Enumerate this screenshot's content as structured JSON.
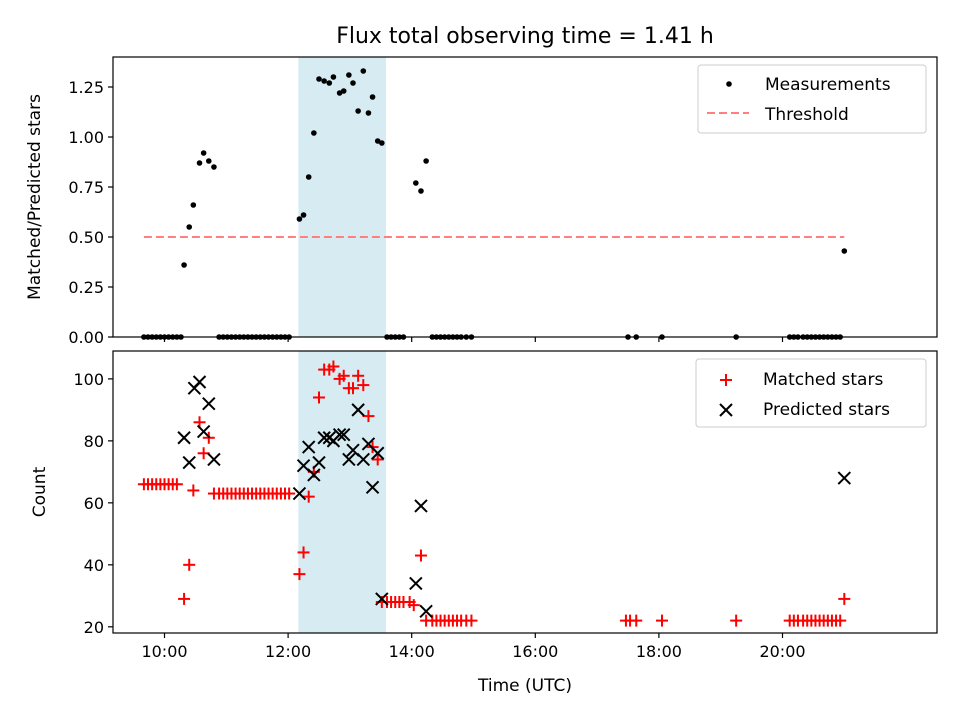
{
  "figure_title": "Flux total observing time = 1.41 h",
  "highlight": {
    "start": "12:10",
    "end": "13:35",
    "color": "#add8e6"
  },
  "chart_data": [
    {
      "type": "scatter",
      "title": "Flux total observing time = 1.41 h",
      "xlabel": "",
      "ylabel": "Matched/Predicted stars",
      "xlim": [
        "09:10",
        "22:30"
      ],
      "ylim": [
        0,
        1.4
      ],
      "yticks": [
        0.0,
        0.25,
        0.5,
        0.75,
        1.0,
        1.25
      ],
      "ytick_labels": [
        "0.00",
        "0.25",
        "0.50",
        "0.75",
        "1.00",
        "1.25"
      ],
      "legend_position": "top-right",
      "series": [
        {
          "name": "Measurements",
          "marker": "dot",
          "color": "#000000",
          "points": [
            [
              "09:40",
              0
            ],
            [
              "09:44",
              0
            ],
            [
              "09:48",
              0
            ],
            [
              "09:52",
              0
            ],
            [
              "09:56",
              0
            ],
            [
              "10:00",
              0
            ],
            [
              "10:04",
              0
            ],
            [
              "10:08",
              0
            ],
            [
              "10:12",
              0
            ],
            [
              "10:16",
              0
            ],
            [
              "10:19",
              0.36
            ],
            [
              "10:24",
              0.55
            ],
            [
              "10:28",
              0.66
            ],
            [
              "10:34",
              0.87
            ],
            [
              "10:38",
              0.92
            ],
            [
              "10:43",
              0.88
            ],
            [
              "10:48",
              0.85
            ],
            [
              "10:53",
              0
            ],
            [
              "10:57",
              0
            ],
            [
              "11:01",
              0
            ],
            [
              "11:05",
              0
            ],
            [
              "11:09",
              0
            ],
            [
              "11:13",
              0
            ],
            [
              "11:17",
              0
            ],
            [
              "11:21",
              0
            ],
            [
              "11:25",
              0
            ],
            [
              "11:29",
              0
            ],
            [
              "11:33",
              0
            ],
            [
              "11:37",
              0
            ],
            [
              "11:41",
              0
            ],
            [
              "11:45",
              0
            ],
            [
              "11:49",
              0
            ],
            [
              "11:53",
              0
            ],
            [
              "11:57",
              0
            ],
            [
              "12:01",
              0
            ],
            [
              "12:11",
              0.59
            ],
            [
              "12:15",
              0.61
            ],
            [
              "12:20",
              0.8
            ],
            [
              "12:25",
              1.02
            ],
            [
              "12:30",
              1.29
            ],
            [
              "12:35",
              1.28
            ],
            [
              "12:40",
              1.27
            ],
            [
              "12:44",
              1.3
            ],
            [
              "12:50",
              1.22
            ],
            [
              "12:54",
              1.23
            ],
            [
              "12:59",
              1.31
            ],
            [
              "13:03",
              1.27
            ],
            [
              "13:08",
              1.13
            ],
            [
              "13:13",
              1.33
            ],
            [
              "13:18",
              1.12
            ],
            [
              "13:22",
              1.2
            ],
            [
              "13:27",
              0.98
            ],
            [
              "13:31",
              0.97
            ],
            [
              "13:36",
              0
            ],
            [
              "13:40",
              0
            ],
            [
              "13:44",
              0
            ],
            [
              "13:48",
              0
            ],
            [
              "13:52",
              0
            ],
            [
              "14:04",
              0.77
            ],
            [
              "14:09",
              0.73
            ],
            [
              "14:14",
              0.88
            ],
            [
              "14:20",
              0
            ],
            [
              "14:24",
              0
            ],
            [
              "14:28",
              0
            ],
            [
              "14:32",
              0
            ],
            [
              "14:36",
              0
            ],
            [
              "14:40",
              0
            ],
            [
              "14:44",
              0
            ],
            [
              "14:48",
              0
            ],
            [
              "14:53",
              0
            ],
            [
              "14:58",
              0
            ],
            [
              "17:30",
              0
            ],
            [
              "17:38",
              0
            ],
            [
              "18:03",
              0
            ],
            [
              "19:15",
              0
            ],
            [
              "20:07",
              0
            ],
            [
              "20:11",
              0
            ],
            [
              "20:15",
              0
            ],
            [
              "20:20",
              0
            ],
            [
              "20:24",
              0
            ],
            [
              "20:28",
              0
            ],
            [
              "20:32",
              0
            ],
            [
              "20:36",
              0
            ],
            [
              "20:40",
              0
            ],
            [
              "20:44",
              0
            ],
            [
              "20:48",
              0
            ],
            [
              "20:52",
              0
            ],
            [
              "20:56",
              0
            ],
            [
              "21:00",
              0.43
            ]
          ]
        },
        {
          "name": "Threshold",
          "marker": "dashed-line",
          "color": "#ff7f7f",
          "points": [
            [
              "09:40",
              0.5
            ],
            [
              "21:00",
              0.5
            ]
          ]
        }
      ]
    },
    {
      "type": "scatter",
      "title": "",
      "xlabel": "Time (UTC)",
      "ylabel": "Count",
      "xlim": [
        "09:10",
        "22:30"
      ],
      "ylim": [
        18,
        109
      ],
      "xticks": [
        "10:00",
        "12:00",
        "14:00",
        "16:00",
        "18:00",
        "20:00"
      ],
      "yticks": [
        20,
        40,
        60,
        80,
        100
      ],
      "legend_position": "top-right",
      "series": [
        {
          "name": "Matched stars",
          "marker": "plus",
          "color": "#ff0000",
          "points": [
            [
              "09:40",
              66
            ],
            [
              "09:44",
              66
            ],
            [
              "09:48",
              66
            ],
            [
              "09:52",
              66
            ],
            [
              "09:56",
              66
            ],
            [
              "10:00",
              66
            ],
            [
              "10:04",
              66
            ],
            [
              "10:08",
              66
            ],
            [
              "10:12",
              66
            ],
            [
              "10:19",
              29
            ],
            [
              "10:24",
              40
            ],
            [
              "10:28",
              64
            ],
            [
              "10:34",
              86
            ],
            [
              "10:38",
              76
            ],
            [
              "10:43",
              81
            ],
            [
              "10:48",
              63
            ],
            [
              "10:53",
              63
            ],
            [
              "10:57",
              63
            ],
            [
              "11:01",
              63
            ],
            [
              "11:05",
              63
            ],
            [
              "11:09",
              63
            ],
            [
              "11:13",
              63
            ],
            [
              "11:17",
              63
            ],
            [
              "11:21",
              63
            ],
            [
              "11:25",
              63
            ],
            [
              "11:29",
              63
            ],
            [
              "11:33",
              63
            ],
            [
              "11:37",
              63
            ],
            [
              "11:41",
              63
            ],
            [
              "11:45",
              63
            ],
            [
              "11:49",
              63
            ],
            [
              "11:53",
              63
            ],
            [
              "11:57",
              63
            ],
            [
              "12:01",
              63
            ],
            [
              "12:11",
              37
            ],
            [
              "12:15",
              44
            ],
            [
              "12:20",
              62
            ],
            [
              "12:25",
              70
            ],
            [
              "12:30",
              94
            ],
            [
              "12:35",
              103
            ],
            [
              "12:40",
              103
            ],
            [
              "12:44",
              104
            ],
            [
              "12:50",
              100
            ],
            [
              "12:54",
              101
            ],
            [
              "12:59",
              97
            ],
            [
              "13:03",
              97
            ],
            [
              "13:08",
              101
            ],
            [
              "13:13",
              98
            ],
            [
              "13:18",
              88
            ],
            [
              "13:22",
              78
            ],
            [
              "13:27",
              74
            ],
            [
              "13:31",
              28
            ],
            [
              "13:36",
              28
            ],
            [
              "13:40",
              28
            ],
            [
              "13:44",
              28
            ],
            [
              "13:48",
              28
            ],
            [
              "13:52",
              28
            ],
            [
              "13:58",
              28
            ],
            [
              "14:02",
              27
            ],
            [
              "14:09",
              43
            ],
            [
              "14:14",
              22
            ],
            [
              "14:20",
              22
            ],
            [
              "14:24",
              22
            ],
            [
              "14:28",
              22
            ],
            [
              "14:32",
              22
            ],
            [
              "14:36",
              22
            ],
            [
              "14:40",
              22
            ],
            [
              "14:44",
              22
            ],
            [
              "14:48",
              22
            ],
            [
              "14:53",
              22
            ],
            [
              "14:58",
              22
            ],
            [
              "17:28",
              22
            ],
            [
              "17:32",
              22
            ],
            [
              "17:38",
              22
            ],
            [
              "18:03",
              22
            ],
            [
              "19:15",
              22
            ],
            [
              "20:07",
              22
            ],
            [
              "20:11",
              22
            ],
            [
              "20:15",
              22
            ],
            [
              "20:20",
              22
            ],
            [
              "20:24",
              22
            ],
            [
              "20:28",
              22
            ],
            [
              "20:32",
              22
            ],
            [
              "20:36",
              22
            ],
            [
              "20:40",
              22
            ],
            [
              "20:44",
              22
            ],
            [
              "20:48",
              22
            ],
            [
              "20:52",
              22
            ],
            [
              "20:56",
              22
            ],
            [
              "21:00",
              29
            ]
          ]
        },
        {
          "name": "Predicted stars",
          "marker": "x",
          "color": "#000000",
          "points": [
            [
              "10:19",
              81
            ],
            [
              "10:24",
              73
            ],
            [
              "10:29",
              97
            ],
            [
              "10:34",
              99
            ],
            [
              "10:38",
              83
            ],
            [
              "10:43",
              92
            ],
            [
              "10:48",
              74
            ],
            [
              "12:11",
              63
            ],
            [
              "12:15",
              72
            ],
            [
              "12:20",
              78
            ],
            [
              "12:25",
              69
            ],
            [
              "12:30",
              73
            ],
            [
              "12:35",
              81
            ],
            [
              "12:40",
              81
            ],
            [
              "12:44",
              80
            ],
            [
              "12:50",
              82
            ],
            [
              "12:54",
              82
            ],
            [
              "12:59",
              74
            ],
            [
              "13:03",
              77
            ],
            [
              "13:08",
              90
            ],
            [
              "13:13",
              74
            ],
            [
              "13:18",
              79
            ],
            [
              "13:22",
              65
            ],
            [
              "13:27",
              76
            ],
            [
              "13:31",
              29
            ],
            [
              "14:04",
              34
            ],
            [
              "14:09",
              59
            ],
            [
              "14:14",
              25
            ],
            [
              "21:00",
              68
            ]
          ]
        }
      ]
    }
  ]
}
